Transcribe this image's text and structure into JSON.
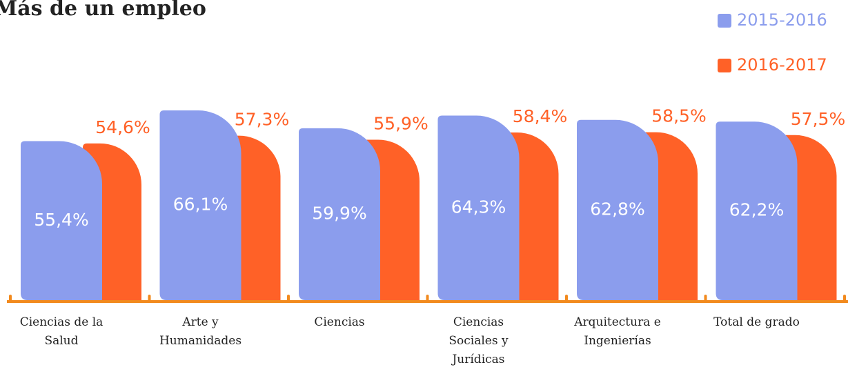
{
  "chart_data": {
    "type": "bar",
    "title": "Más de un empleo",
    "categories": [
      "Ciencias de la Salud",
      "Arte y Humanidades",
      "Ciencias",
      "Ciencias Sociales y Jurídicas",
      "Arquitectura e Ingenierías",
      "Total de grado"
    ],
    "series": [
      {
        "name": "2015-2016",
        "color": "#8b9ded",
        "values": [
          55.4,
          66.1,
          59.9,
          64.3,
          62.8,
          62.2
        ],
        "value_labels": [
          "55,4%",
          "66,1%",
          "59,9%",
          "64,3%",
          "62,8%",
          "62,2%"
        ]
      },
      {
        "name": "2016-2017",
        "color": "#ff6127",
        "values": [
          54.6,
          57.3,
          55.9,
          58.4,
          58.5,
          57.5
        ],
        "value_labels": [
          "54,6%",
          "57,3%",
          "55,9%",
          "58,4%",
          "58,5%",
          "57,5%"
        ]
      }
    ],
    "ylim": [
      0,
      100
    ]
  }
}
